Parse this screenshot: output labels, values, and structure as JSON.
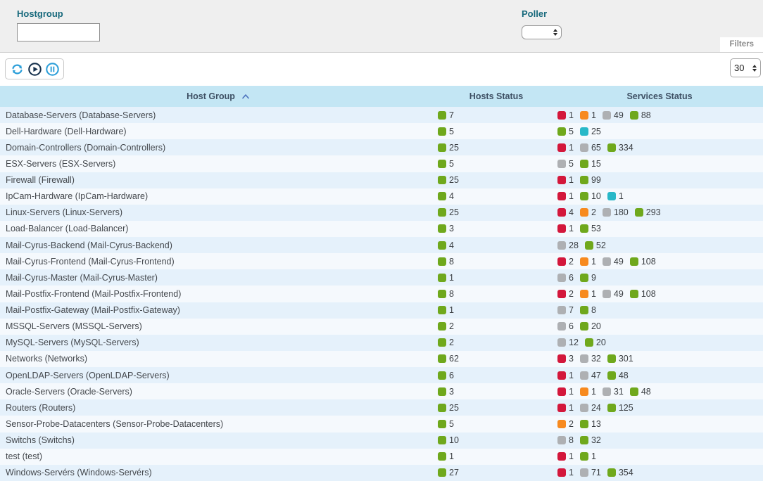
{
  "filters": {
    "hostgroup_label": "Hostgroup",
    "hostgroup_value": "",
    "poller_label": "Poller",
    "poller_value": "",
    "filters_tab_label": "Filters"
  },
  "toolbar": {
    "refresh_icon": "refresh-icon",
    "play_icon": "play-icon",
    "pause_icon": "pause-icon",
    "page_size": "30"
  },
  "table": {
    "columns": [
      "Host Group",
      "Hosts Status",
      "Services Status"
    ],
    "sort": {
      "column": "Host Group",
      "direction": "asc"
    },
    "status_colors": {
      "ok": "#6fa81c",
      "warning": "#f78a1f",
      "critical": "#d3173b",
      "unknown": "#aeb0b3",
      "pending": "#28b8c8"
    },
    "rows": [
      {
        "name": "Database-Servers (Database-Servers)",
        "hosts": [
          {
            "status": "ok",
            "count": 7
          }
        ],
        "services": [
          {
            "status": "critical",
            "count": 1
          },
          {
            "status": "warning",
            "count": 1
          },
          {
            "status": "unknown",
            "count": 49
          },
          {
            "status": "ok",
            "count": 88
          }
        ]
      },
      {
        "name": "Dell-Hardware (Dell-Hardware)",
        "hosts": [
          {
            "status": "ok",
            "count": 5
          }
        ],
        "services": [
          {
            "status": "ok",
            "count": 5
          },
          {
            "status": "pending",
            "count": 25
          }
        ]
      },
      {
        "name": "Domain-Controllers (Domain-Controllers)",
        "hosts": [
          {
            "status": "ok",
            "count": 25
          }
        ],
        "services": [
          {
            "status": "critical",
            "count": 1
          },
          {
            "status": "unknown",
            "count": 65
          },
          {
            "status": "ok",
            "count": 334
          }
        ]
      },
      {
        "name": "ESX-Servers (ESX-Servers)",
        "hosts": [
          {
            "status": "ok",
            "count": 5
          }
        ],
        "services": [
          {
            "status": "unknown",
            "count": 5
          },
          {
            "status": "ok",
            "count": 15
          }
        ]
      },
      {
        "name": "Firewall (Firewall)",
        "hosts": [
          {
            "status": "ok",
            "count": 25
          }
        ],
        "services": [
          {
            "status": "critical",
            "count": 1
          },
          {
            "status": "ok",
            "count": 99
          }
        ]
      },
      {
        "name": "IpCam-Hardware (IpCam-Hardware)",
        "hosts": [
          {
            "status": "ok",
            "count": 4
          }
        ],
        "services": [
          {
            "status": "critical",
            "count": 1
          },
          {
            "status": "ok",
            "count": 10
          },
          {
            "status": "pending",
            "count": 1
          }
        ]
      },
      {
        "name": "Linux-Servers (Linux-Servers)",
        "hosts": [
          {
            "status": "ok",
            "count": 25
          }
        ],
        "services": [
          {
            "status": "critical",
            "count": 4
          },
          {
            "status": "warning",
            "count": 2
          },
          {
            "status": "unknown",
            "count": 180
          },
          {
            "status": "ok",
            "count": 293
          }
        ]
      },
      {
        "name": "Load-Balancer (Load-Balancer)",
        "hosts": [
          {
            "status": "ok",
            "count": 3
          }
        ],
        "services": [
          {
            "status": "critical",
            "count": 1
          },
          {
            "status": "ok",
            "count": 53
          }
        ]
      },
      {
        "name": "Mail-Cyrus-Backend (Mail-Cyrus-Backend)",
        "hosts": [
          {
            "status": "ok",
            "count": 4
          }
        ],
        "services": [
          {
            "status": "unknown",
            "count": 28
          },
          {
            "status": "ok",
            "count": 52
          }
        ]
      },
      {
        "name": "Mail-Cyrus-Frontend (Mail-Cyrus-Frontend)",
        "hosts": [
          {
            "status": "ok",
            "count": 8
          }
        ],
        "services": [
          {
            "status": "critical",
            "count": 2
          },
          {
            "status": "warning",
            "count": 1
          },
          {
            "status": "unknown",
            "count": 49
          },
          {
            "status": "ok",
            "count": 108
          }
        ]
      },
      {
        "name": "Mail-Cyrus-Master (Mail-Cyrus-Master)",
        "hosts": [
          {
            "status": "ok",
            "count": 1
          }
        ],
        "services": [
          {
            "status": "unknown",
            "count": 6
          },
          {
            "status": "ok",
            "count": 9
          }
        ]
      },
      {
        "name": "Mail-Postfix-Frontend (Mail-Postfix-Frontend)",
        "hosts": [
          {
            "status": "ok",
            "count": 8
          }
        ],
        "services": [
          {
            "status": "critical",
            "count": 2
          },
          {
            "status": "warning",
            "count": 1
          },
          {
            "status": "unknown",
            "count": 49
          },
          {
            "status": "ok",
            "count": 108
          }
        ]
      },
      {
        "name": "Mail-Postfix-Gateway (Mail-Postfix-Gateway)",
        "hosts": [
          {
            "status": "ok",
            "count": 1
          }
        ],
        "services": [
          {
            "status": "unknown",
            "count": 7
          },
          {
            "status": "ok",
            "count": 8
          }
        ]
      },
      {
        "name": "MSSQL-Servers (MSSQL-Servers)",
        "hosts": [
          {
            "status": "ok",
            "count": 2
          }
        ],
        "services": [
          {
            "status": "unknown",
            "count": 6
          },
          {
            "status": "ok",
            "count": 20
          }
        ]
      },
      {
        "name": "MySQL-Servers (MySQL-Servers)",
        "hosts": [
          {
            "status": "ok",
            "count": 2
          }
        ],
        "services": [
          {
            "status": "unknown",
            "count": 12
          },
          {
            "status": "ok",
            "count": 20
          }
        ]
      },
      {
        "name": "Networks (Networks)",
        "hosts": [
          {
            "status": "ok",
            "count": 62
          }
        ],
        "services": [
          {
            "status": "critical",
            "count": 3
          },
          {
            "status": "unknown",
            "count": 32
          },
          {
            "status": "ok",
            "count": 301
          }
        ]
      },
      {
        "name": "OpenLDAP-Servers (OpenLDAP-Servers)",
        "hosts": [
          {
            "status": "ok",
            "count": 6
          }
        ],
        "services": [
          {
            "status": "critical",
            "count": 1
          },
          {
            "status": "unknown",
            "count": 47
          },
          {
            "status": "ok",
            "count": 48
          }
        ]
      },
      {
        "name": "Oracle-Servers (Oracle-Servers)",
        "hosts": [
          {
            "status": "ok",
            "count": 3
          }
        ],
        "services": [
          {
            "status": "critical",
            "count": 1
          },
          {
            "status": "warning",
            "count": 1
          },
          {
            "status": "unknown",
            "count": 31
          },
          {
            "status": "ok",
            "count": 48
          }
        ]
      },
      {
        "name": "Routers (Routers)",
        "hosts": [
          {
            "status": "ok",
            "count": 25
          }
        ],
        "services": [
          {
            "status": "critical",
            "count": 1
          },
          {
            "status": "unknown",
            "count": 24
          },
          {
            "status": "ok",
            "count": 125
          }
        ]
      },
      {
        "name": "Sensor-Probe-Datacenters (Sensor-Probe-Datacenters)",
        "hosts": [
          {
            "status": "ok",
            "count": 5
          }
        ],
        "services": [
          {
            "status": "warning",
            "count": 2
          },
          {
            "status": "ok",
            "count": 13
          }
        ]
      },
      {
        "name": "Switchs (Switchs)",
        "hosts": [
          {
            "status": "ok",
            "count": 10
          }
        ],
        "services": [
          {
            "status": "unknown",
            "count": 8
          },
          {
            "status": "ok",
            "count": 32
          }
        ]
      },
      {
        "name": "test (test)",
        "hosts": [
          {
            "status": "ok",
            "count": 1
          }
        ],
        "services": [
          {
            "status": "critical",
            "count": 1
          },
          {
            "status": "ok",
            "count": 1
          }
        ]
      },
      {
        "name": "Windows-Servérs (Windows-Servérs)",
        "hosts": [
          {
            "status": "ok",
            "count": 27
          }
        ],
        "services": [
          {
            "status": "critical",
            "count": 1
          },
          {
            "status": "unknown",
            "count": 71
          },
          {
            "status": "ok",
            "count": 354
          }
        ]
      }
    ]
  }
}
